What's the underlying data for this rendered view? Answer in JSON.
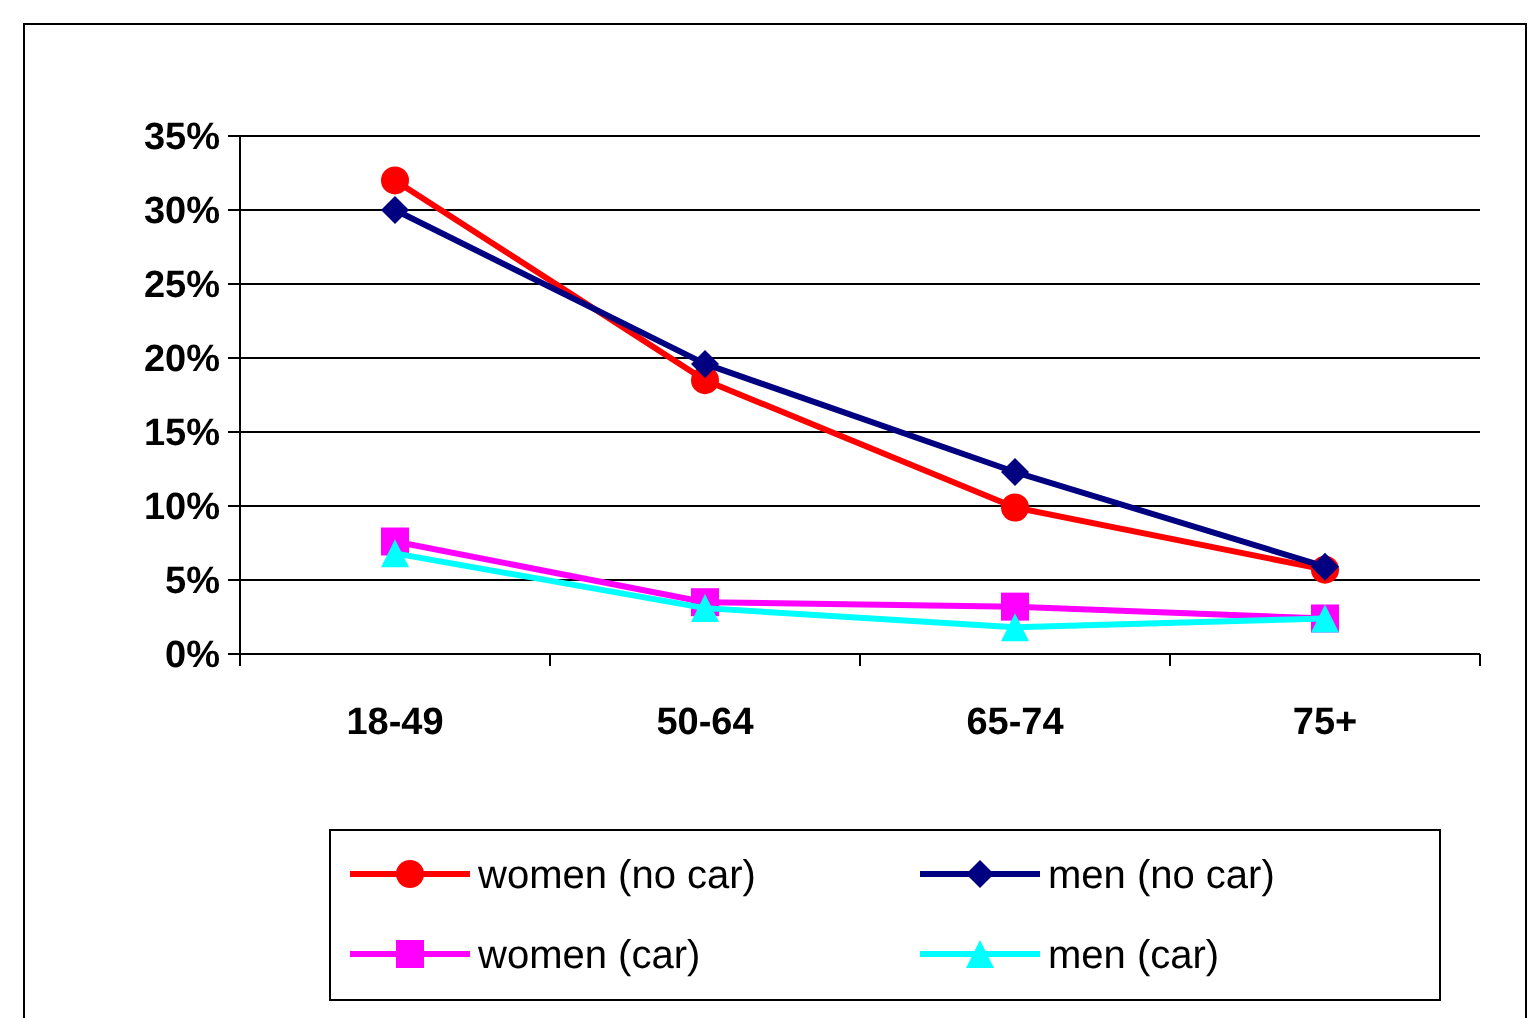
{
  "chart_data": {
    "type": "line",
    "categories": [
      "18-49",
      "50-64",
      "65-74",
      "75+"
    ],
    "series": [
      {
        "name": "women (no car)",
        "color": "#ff0000",
        "marker": "circle",
        "values": [
          32,
          18.5,
          9.9,
          5.7
        ]
      },
      {
        "name": "men (no car)",
        "color": "#000080",
        "marker": "diamond",
        "values": [
          30,
          19.6,
          12.3,
          5.9
        ]
      },
      {
        "name": "women (car)",
        "color": "#ff00ff",
        "marker": "square",
        "values": [
          7.6,
          3.5,
          3.2,
          2.4
        ]
      },
      {
        "name": "men (car)",
        "color": "#00ffff",
        "marker": "triangle",
        "values": [
          6.8,
          3.1,
          1.8,
          2.4
        ]
      }
    ],
    "ylim": [
      0,
      35
    ],
    "yticks": [
      {
        "value": 0,
        "label": "0%"
      },
      {
        "value": 5,
        "label": "5%"
      },
      {
        "value": 10,
        "label": "10%"
      },
      {
        "value": 15,
        "label": "15%"
      },
      {
        "value": 20,
        "label": "20%"
      },
      {
        "value": 25,
        "label": "25%"
      },
      {
        "value": 30,
        "label": "30%"
      },
      {
        "value": 35,
        "label": "35%"
      }
    ],
    "grid": "y",
    "legend": "bottom",
    "line_style": "solid"
  }
}
